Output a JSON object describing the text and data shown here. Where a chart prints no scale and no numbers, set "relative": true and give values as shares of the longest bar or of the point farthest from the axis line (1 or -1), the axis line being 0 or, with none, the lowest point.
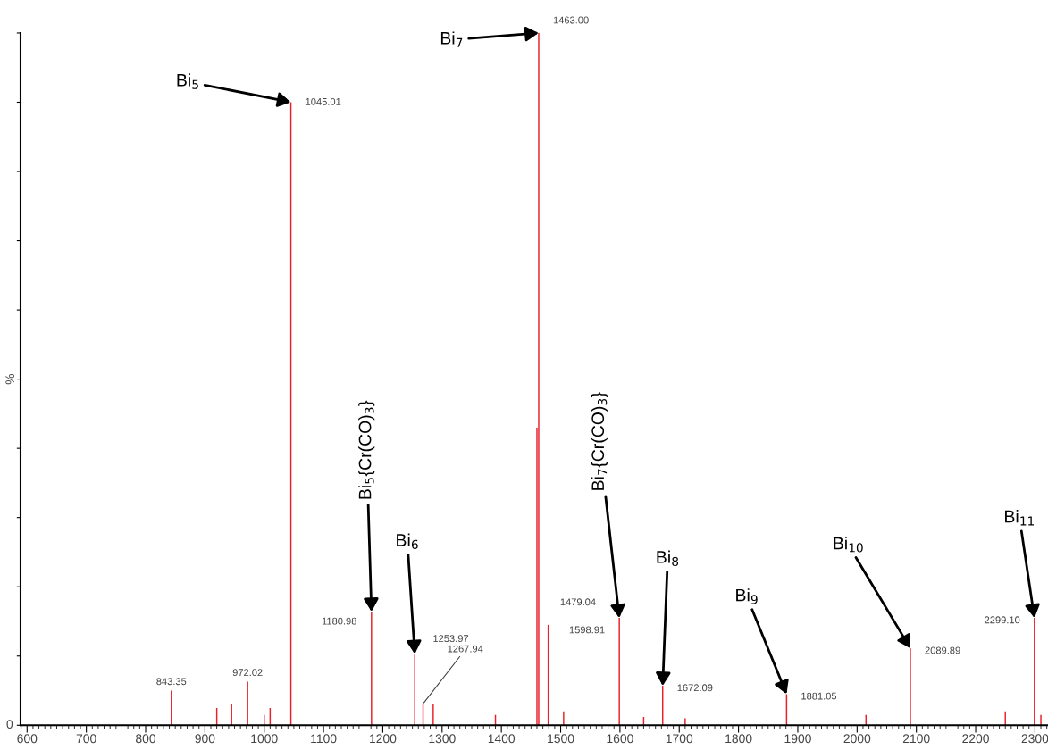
{
  "chart_data": {
    "type": "bar",
    "relative": true,
    "ylabel": "%",
    "xlim": [
      589,
      2322
    ],
    "xticks": [
      600,
      700,
      800,
      900,
      1000,
      1100,
      1200,
      1300,
      1400,
      1500,
      1600,
      1700,
      1800,
      1900,
      2000,
      2100,
      2200,
      2300
    ],
    "grid": false,
    "tick_labels": "x",
    "series": [
      {
        "color": "#e8202a",
        "x": [
          843.35,
          920,
          945,
          972.02,
          1000,
          1010,
          1045.01,
          1180.98,
          1253.97,
          1267.94,
          1285,
          1390,
          1460,
          1463.0,
          1479.04,
          1505,
          1598.91,
          1640,
          1672.09,
          1710,
          1881.05,
          2015,
          2089.89,
          2250,
          2299.1,
          2310
        ],
        "values": [
          0.05,
          0.025,
          0.03,
          0.063,
          0.015,
          0.025,
          0.9,
          0.164,
          0.103,
          0.031,
          0.03,
          0.015,
          0.43,
          1.0,
          0.145,
          0.02,
          0.155,
          0.012,
          0.057,
          0.01,
          0.045,
          0.015,
          0.111,
          0.02,
          0.155,
          0.015
        ]
      }
    ],
    "annotations": [
      {
        "text": "Bi$_{5}$",
        "x": 1045.01,
        "y": 0.9
      },
      {
        "text": "Bi$_{7}$",
        "x": 1463.0,
        "y": 1.0
      },
      {
        "text": "Bi$_{5}${Cr(CO)$_{3}$}",
        "x": 1180.98,
        "y": 0.164
      },
      {
        "text": "Bi$_{6}$",
        "x": 1253.97,
        "y": 0.103
      },
      {
        "text": "Bi$_{7}${Cr(CO)$_{3}$}",
        "x": 1598.91,
        "y": 0.155
      },
      {
        "text": "Bi$_{8}$",
        "x": 1672.09,
        "y": 0.057
      },
      {
        "text": "Bi$_{9}$",
        "x": 1881.05,
        "y": 0.045
      },
      {
        "text": "Bi$_{10}$",
        "x": 2089.89,
        "y": 0.111
      },
      {
        "text": "Bi$_{11}$",
        "x": 2299.1,
        "y": 0.155
      },
      {
        "text": "843.35",
        "x": 843.35,
        "y": 0.05
      },
      {
        "text": "972.02",
        "x": 972.02,
        "y": 0.063
      },
      {
        "text": "1045.01",
        "x": 1045.01,
        "y": 0.9
      },
      {
        "text": "1180.98",
        "x": 1180.98,
        "y": 0.164
      },
      {
        "text": "1253.97",
        "x": 1253.97,
        "y": 0.103
      },
      {
        "text": "1267.94",
        "x": 1267.94,
        "y": 0.031
      },
      {
        "text": "1463.00",
        "x": 1463.0,
        "y": 1.0
      },
      {
        "text": "1479.04",
        "x": 1479.04,
        "y": 0.145
      },
      {
        "text": "1598.91",
        "x": 1598.91,
        "y": 0.155
      },
      {
        "text": "1672.09",
        "x": 1672.09,
        "y": 0.057
      },
      {
        "text": "1881.05",
        "x": 1881.05,
        "y": 0.045
      },
      {
        "text": "2089.89",
        "x": 2089.89,
        "y": 0.111
      },
      {
        "text": "2299.10",
        "x": 2299.1,
        "y": 0.155
      },
      "0"
    ]
  }
}
